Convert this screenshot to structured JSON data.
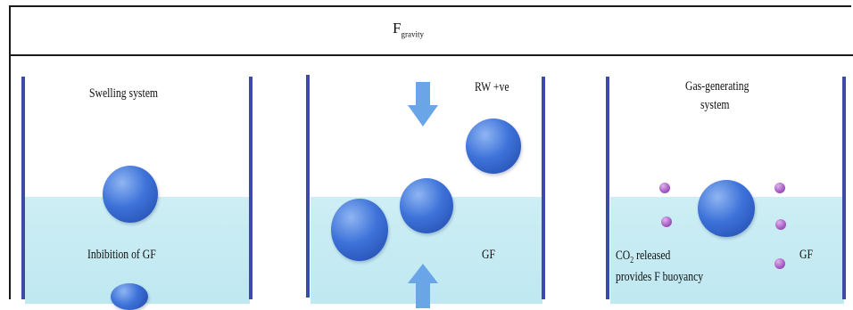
{
  "title": {
    "main": "F",
    "sub": "gravity"
  },
  "panels": {
    "swelling": {
      "title": "Swelling system",
      "label": "Inbibition of GF"
    },
    "middle": {
      "label_top": "RW +ve",
      "label_right": "GF"
    },
    "gas": {
      "title_line1": "Gas-generating",
      "title_line2": "system",
      "label_right": "GF",
      "co2_line1_pre": "CO",
      "co2_line1_sub": "2",
      "co2_line1_post": " released",
      "co2_line2": "provides F buoyancy"
    }
  },
  "colors": {
    "wall": "#3d4aa6",
    "water": "#cdeef4",
    "ball": "#3e73d9",
    "bubble": "#a55ac4",
    "arrow": "#6aa5e8"
  },
  "icons": {
    "arrow_down": "down-arrow-icon",
    "arrow_up": "up-arrow-icon"
  }
}
